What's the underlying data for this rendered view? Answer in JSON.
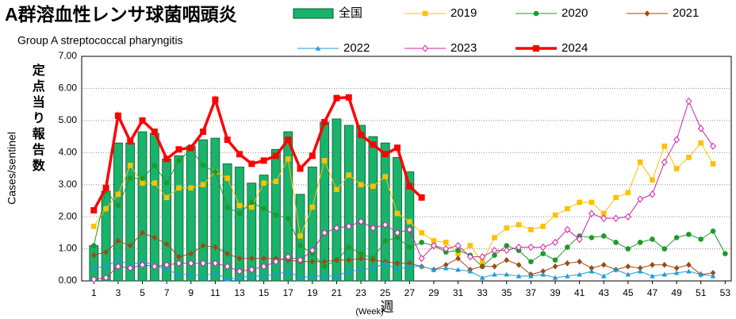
{
  "chart_data": {
    "type": "line",
    "title": "A群溶血性レンサ球菌咽頭炎",
    "subtitle": "Group A streptococcal pharyngitis",
    "ylabel": "Cases/sentinel",
    "ylabel_ja": "定点当り報告数",
    "xlabel": "(Week)",
    "xlabel_ja": "週",
    "x": [
      1,
      2,
      3,
      4,
      5,
      6,
      7,
      8,
      9,
      10,
      11,
      12,
      13,
      14,
      15,
      16,
      17,
      18,
      19,
      20,
      21,
      22,
      23,
      24,
      25,
      26,
      27,
      28,
      29,
      30,
      31,
      32,
      33,
      34,
      35,
      36,
      37,
      38,
      39,
      40,
      41,
      42,
      43,
      44,
      45,
      46,
      47,
      48,
      49,
      50,
      51,
      52,
      53
    ],
    "xlim": [
      0,
      53.5
    ],
    "xticks": [
      1,
      3,
      5,
      7,
      9,
      11,
      13,
      15,
      17,
      19,
      21,
      23,
      25,
      27,
      29,
      31,
      33,
      35,
      37,
      39,
      41,
      43,
      45,
      47,
      49,
      51,
      53
    ],
    "ylim": [
      0,
      7
    ],
    "yticks": [
      {
        "value": 0,
        "label": "0.00"
      },
      {
        "value": 1,
        "label": "1.00"
      },
      {
        "value": 2,
        "label": "2.00"
      },
      {
        "value": 3,
        "label": "3.00"
      },
      {
        "value": 4,
        "label": "4.00"
      },
      {
        "value": 5,
        "label": "5.00"
      },
      {
        "value": 6,
        "label": "6.00"
      },
      {
        "value": 7,
        "label": "7.00"
      }
    ],
    "grid": true,
    "bars": {
      "name": "全国",
      "color": "#19b36b",
      "values": [
        1.1,
        2.8,
        4.3,
        4.3,
        4.65,
        4.6,
        3.8,
        3.9,
        4.2,
        4.4,
        4.45,
        3.65,
        3.55,
        3.05,
        3.3,
        4.1,
        4.65,
        2.7,
        3.55,
        4.95,
        5.05,
        4.85,
        4.85,
        4.5,
        4.3,
        3.85,
        3.4,
        null,
        null,
        null,
        null,
        null,
        null,
        null,
        null,
        null,
        null,
        null,
        null,
        null,
        null,
        null,
        null,
        null,
        null,
        null,
        null,
        null,
        null,
        null,
        null,
        null,
        null
      ]
    },
    "series": [
      {
        "name": "2019",
        "color": "#ffc000",
        "marker": "square",
        "width": 1,
        "values": [
          1.7,
          2.25,
          2.7,
          3.6,
          3.05,
          3.05,
          2.6,
          2.9,
          2.9,
          3.0,
          3.4,
          3.2,
          2.35,
          2.3,
          3.05,
          3.1,
          3.8,
          1.4,
          2.3,
          3.75,
          2.85,
          3.3,
          3.0,
          2.95,
          3.25,
          2.1,
          1.85,
          1.5,
          1.25,
          1.2,
          0.85,
          1.1,
          0.6,
          1.35,
          1.65,
          1.75,
          1.6,
          1.7,
          2.05,
          2.25,
          2.45,
          2.45,
          2.1,
          2.6,
          2.75,
          3.7,
          3.15,
          4.2,
          3.5,
          3.85,
          4.3,
          3.65,
          null
        ]
      },
      {
        "name": "2020",
        "color": "#1e9a2a",
        "marker": "circle",
        "width": 1,
        "values": [
          1.1,
          2.8,
          2.35,
          3.2,
          3.2,
          3.6,
          3.05,
          3.75,
          4.1,
          3.6,
          3.4,
          2.3,
          2.1,
          2.45,
          2.25,
          2.05,
          1.95,
          1.1,
          0.85,
          0.45,
          0.65,
          1.05,
          0.85,
          0.7,
          1.25,
          1.35,
          1.05,
          1.2,
          1.1,
          0.9,
          0.95,
          0.8,
          0.45,
          0.8,
          1.1,
          0.95,
          0.6,
          0.85,
          0.65,
          1.05,
          1.4,
          1.35,
          1.4,
          1.2,
          1.0,
          1.2,
          1.3,
          1.0,
          1.35,
          1.45,
          1.3,
          1.55,
          0.85
        ]
      },
      {
        "name": "2021",
        "color": "#9c4a12",
        "marker": "diamond",
        "width": 1,
        "values": [
          0.8,
          0.9,
          1.25,
          1.1,
          1.5,
          1.35,
          1.15,
          0.75,
          0.85,
          1.1,
          1.05,
          0.85,
          0.7,
          0.7,
          0.7,
          0.7,
          0.65,
          0.6,
          0.6,
          0.6,
          0.65,
          0.65,
          0.7,
          0.65,
          0.6,
          0.55,
          0.55,
          0.45,
          0.35,
          0.5,
          0.7,
          0.35,
          0.45,
          0.45,
          0.65,
          0.5,
          0.2,
          0.3,
          0.45,
          0.55,
          0.6,
          0.4,
          0.5,
          0.35,
          0.45,
          0.4,
          0.5,
          0.5,
          0.4,
          0.5,
          0.2,
          0.25,
          null
        ]
      },
      {
        "name": "2022",
        "color": "#1f9bd7",
        "marker": "triangle",
        "width": 1,
        "values": [
          0.4,
          0.45,
          0.65,
          0.5,
          0.6,
          0.5,
          0.35,
          0.2,
          0.2,
          0.15,
          0.25,
          0.05,
          0.1,
          0.15,
          0.15,
          0.2,
          0.3,
          0.1,
          0.15,
          0.15,
          0.15,
          0.3,
          0.35,
          0.4,
          0.55,
          0.35,
          0.45,
          0.45,
          0.35,
          0.4,
          0.35,
          0.3,
          0.1,
          0.2,
          0.2,
          0.15,
          0.15,
          0.2,
          0.1,
          0.15,
          0.2,
          0.3,
          0.15,
          0.35,
          0.2,
          0.3,
          0.15,
          0.2,
          0.25,
          0.3,
          0.2,
          0.15,
          null
        ]
      },
      {
        "name": "2023",
        "color": "#d21fa8",
        "marker": "diamond-open",
        "width": 1,
        "values": [
          0.05,
          0.1,
          0.45,
          0.4,
          0.5,
          0.45,
          0.5,
          0.55,
          0.55,
          0.55,
          0.55,
          0.45,
          0.3,
          0.35,
          0.45,
          0.6,
          0.75,
          0.65,
          0.95,
          1.5,
          1.65,
          1.7,
          1.85,
          1.65,
          1.75,
          1.5,
          1.6,
          0.7,
          1.1,
          1.0,
          1.1,
          0.75,
          0.75,
          0.95,
          0.95,
          1.05,
          1.05,
          1.05,
          1.2,
          1.6,
          1.3,
          2.1,
          1.95,
          1.95,
          2.0,
          2.55,
          2.7,
          3.7,
          4.4,
          5.6,
          4.75,
          4.2,
          null
        ]
      },
      {
        "name": "2024",
        "color": "#ff0000",
        "marker": "square",
        "width": 3.5,
        "values": [
          2.2,
          2.9,
          5.15,
          4.35,
          5.0,
          4.65,
          3.8,
          4.1,
          4.15,
          4.65,
          5.65,
          4.4,
          3.95,
          3.65,
          3.75,
          3.9,
          4.4,
          3.5,
          3.9,
          4.95,
          5.7,
          5.72,
          4.55,
          4.25,
          3.95,
          4.15,
          2.95,
          2.6,
          null,
          null,
          null,
          null,
          null,
          null,
          null,
          null,
          null,
          null,
          null,
          null,
          null,
          null,
          null,
          null,
          null,
          null,
          null,
          null,
          null,
          null,
          null,
          null,
          null
        ]
      }
    ]
  }
}
